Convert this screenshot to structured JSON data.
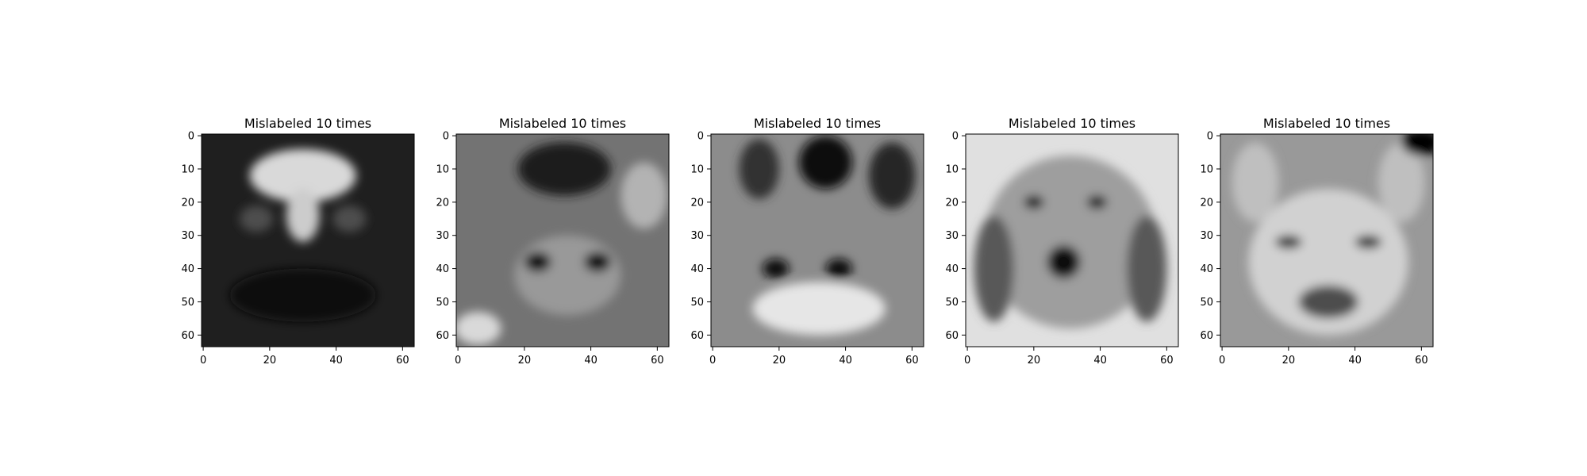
{
  "chart_data": [
    {
      "type": "heatmap",
      "title": "Mislabeled 10 times",
      "colormap": "gray",
      "xlim": [
        0,
        63
      ],
      "ylim": [
        63,
        0
      ],
      "x_ticks": [
        0,
        20,
        40,
        60
      ],
      "y_ticks": [
        0,
        10,
        20,
        30,
        40,
        50,
        60
      ],
      "background": 0.12,
      "features": [
        {
          "kind": "ellipse",
          "cx": 30,
          "cy": 12,
          "rx": 16,
          "ry": 8,
          "value": 0.85
        },
        {
          "kind": "ellipse",
          "cx": 30,
          "cy": 24,
          "rx": 5,
          "ry": 8,
          "value": 0.8
        },
        {
          "kind": "ellipse",
          "cx": 30,
          "cy": 48,
          "rx": 22,
          "ry": 8,
          "value": 0.05
        },
        {
          "kind": "ellipse",
          "cx": 16,
          "cy": 25,
          "rx": 5,
          "ry": 4,
          "value": 0.3
        },
        {
          "kind": "ellipse",
          "cx": 44,
          "cy": 25,
          "rx": 5,
          "ry": 4,
          "value": 0.3
        }
      ]
    },
    {
      "type": "heatmap",
      "title": "Mislabeled 10 times",
      "colormap": "gray",
      "xlim": [
        0,
        63
      ],
      "ylim": [
        63,
        0
      ],
      "x_ticks": [
        0,
        20,
        40,
        60
      ],
      "y_ticks": [
        0,
        10,
        20,
        30,
        40,
        50,
        60
      ],
      "background": 0.45,
      "features": [
        {
          "kind": "ellipse",
          "cx": 32,
          "cy": 10,
          "rx": 14,
          "ry": 8,
          "value": 0.1
        },
        {
          "kind": "ellipse",
          "cx": 33,
          "cy": 42,
          "rx": 16,
          "ry": 12,
          "value": 0.6
        },
        {
          "kind": "ellipse",
          "cx": 24,
          "cy": 38,
          "rx": 4,
          "ry": 3,
          "value": 0.05
        },
        {
          "kind": "ellipse",
          "cx": 42,
          "cy": 38,
          "rx": 4,
          "ry": 3,
          "value": 0.05
        },
        {
          "kind": "ellipse",
          "cx": 6,
          "cy": 58,
          "rx": 7,
          "ry": 5,
          "value": 0.85
        },
        {
          "kind": "ellipse",
          "cx": 56,
          "cy": 18,
          "rx": 7,
          "ry": 10,
          "value": 0.7
        }
      ]
    },
    {
      "type": "heatmap",
      "title": "Mislabeled 10 times",
      "colormap": "gray",
      "xlim": [
        0,
        63
      ],
      "ylim": [
        63,
        0
      ],
      "x_ticks": [
        0,
        20,
        40,
        60
      ],
      "y_ticks": [
        0,
        10,
        20,
        30,
        40,
        50,
        60
      ],
      "background": 0.55,
      "features": [
        {
          "kind": "ellipse",
          "cx": 34,
          "cy": 8,
          "rx": 8,
          "ry": 8,
          "value": 0.05
        },
        {
          "kind": "ellipse",
          "cx": 14,
          "cy": 10,
          "rx": 6,
          "ry": 9,
          "value": 0.2
        },
        {
          "kind": "ellipse",
          "cx": 54,
          "cy": 12,
          "rx": 7,
          "ry": 10,
          "value": 0.15
        },
        {
          "kind": "ellipse",
          "cx": 32,
          "cy": 52,
          "rx": 20,
          "ry": 8,
          "value": 0.9
        },
        {
          "kind": "ellipse",
          "cx": 19,
          "cy": 40,
          "rx": 4,
          "ry": 3,
          "value": 0.05
        },
        {
          "kind": "ellipse",
          "cx": 38,
          "cy": 40,
          "rx": 4,
          "ry": 3,
          "value": 0.05
        }
      ]
    },
    {
      "type": "heatmap",
      "title": "Mislabeled 10 times",
      "colormap": "gray",
      "xlim": [
        0,
        63
      ],
      "ylim": [
        63,
        0
      ],
      "x_ticks": [
        0,
        20,
        40,
        60
      ],
      "y_ticks": [
        0,
        10,
        20,
        30,
        40,
        50,
        60
      ],
      "background": 0.88,
      "features": [
        {
          "kind": "ellipse",
          "cx": 31,
          "cy": 32,
          "rx": 26,
          "ry": 26,
          "value": 0.62
        },
        {
          "kind": "ellipse",
          "cx": 8,
          "cy": 40,
          "rx": 6,
          "ry": 16,
          "value": 0.35
        },
        {
          "kind": "ellipse",
          "cx": 54,
          "cy": 40,
          "rx": 6,
          "ry": 16,
          "value": 0.35
        },
        {
          "kind": "ellipse",
          "cx": 20,
          "cy": 20,
          "rx": 3,
          "ry": 2,
          "value": 0.05
        },
        {
          "kind": "ellipse",
          "cx": 39,
          "cy": 20,
          "rx": 3,
          "ry": 2,
          "value": 0.05
        },
        {
          "kind": "ellipse",
          "cx": 29,
          "cy": 38,
          "rx": 5,
          "ry": 5,
          "value": 0.05
        }
      ]
    },
    {
      "type": "heatmap",
      "title": "Mislabeled 10 times",
      "colormap": "gray",
      "xlim": [
        0,
        63
      ],
      "ylim": [
        63,
        0
      ],
      "x_ticks": [
        0,
        20,
        40,
        60
      ],
      "y_ticks": [
        0,
        10,
        20,
        30,
        40,
        50,
        60
      ],
      "background": 0.6,
      "features": [
        {
          "kind": "ellipse",
          "cx": 32,
          "cy": 38,
          "rx": 24,
          "ry": 22,
          "value": 0.82
        },
        {
          "kind": "ellipse",
          "cx": 10,
          "cy": 14,
          "rx": 7,
          "ry": 12,
          "value": 0.75
        },
        {
          "kind": "ellipse",
          "cx": 54,
          "cy": 14,
          "rx": 7,
          "ry": 12,
          "value": 0.75
        },
        {
          "kind": "ellipse",
          "cx": 60,
          "cy": 2,
          "rx": 6,
          "ry": 4,
          "value": 0.02
        },
        {
          "kind": "ellipse",
          "cx": 20,
          "cy": 32,
          "rx": 4,
          "ry": 2,
          "value": 0.2
        },
        {
          "kind": "ellipse",
          "cx": 44,
          "cy": 32,
          "rx": 4,
          "ry": 2,
          "value": 0.2
        },
        {
          "kind": "ellipse",
          "cx": 32,
          "cy": 50,
          "rx": 9,
          "ry": 5,
          "value": 0.3
        }
      ]
    }
  ]
}
